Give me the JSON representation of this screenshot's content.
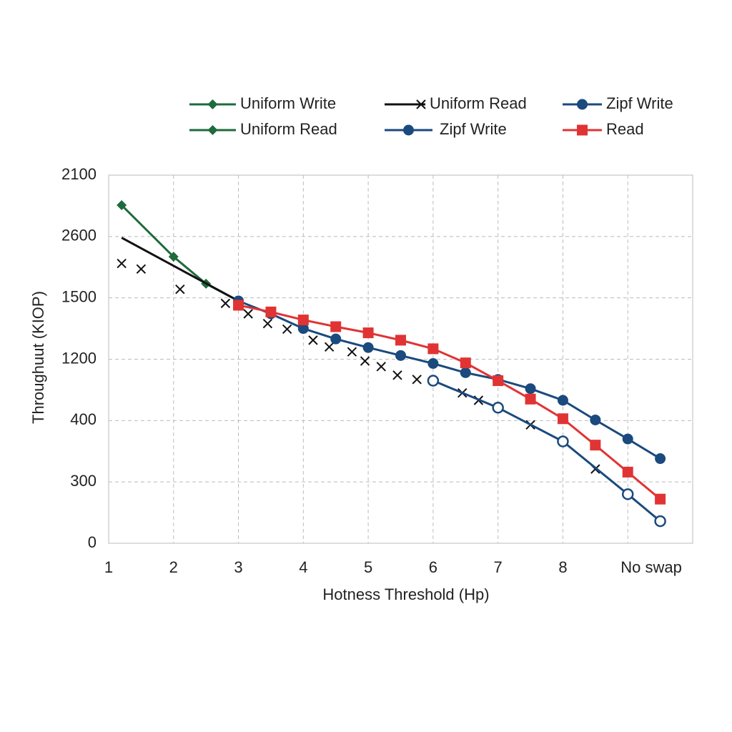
{
  "chart_data": {
    "type": "line",
    "x_label": "Hotness Threshold (Hp)",
    "y_label": "Throughuut (KIOP)",
    "xlim": [
      1,
      10
    ],
    "xticks": [
      1,
      2,
      3,
      4,
      5,
      6,
      7,
      8,
      {
        "value": 9,
        "label": "No swap"
      }
    ],
    "ylim": [
      0,
      6
    ],
    "yticks": [
      0,
      {
        "value": 1,
        "label": "300"
      },
      {
        "value": 2,
        "label": "400"
      },
      {
        "value": 3,
        "label": "1200"
      },
      {
        "value": 4,
        "label": "1500"
      },
      {
        "value": 5,
        "label": "2600"
      },
      {
        "value": 6,
        "label": "2100"
      }
    ],
    "grid": true,
    "series": [
      {
        "name": "Uniform Write",
        "color": "#1e6b3c",
        "marker": "diamond",
        "x": [
          1.2,
          2,
          2.5,
          3
        ],
        "values": [
          5.51,
          4.67,
          4.23,
          3.95
        ]
      },
      {
        "name": "Uniform Read",
        "color": "#111111",
        "marker": "x",
        "x": [
          1.2,
          3
        ],
        "values": [
          4.98,
          3.95
        ],
        "points": {
          "x": [
            1.2,
            1.5,
            2.1,
            2.8,
            3.15,
            3.45,
            3.75,
            4.15,
            4.4,
            4.75,
            4.95,
            5.2,
            5.45,
            5.75,
            6.45,
            6.7,
            7.5,
            8.5
          ],
          "values": [
            4.56,
            4.47,
            4.14,
            3.91,
            3.74,
            3.58,
            3.49,
            3.31,
            3.2,
            3.12,
            2.97,
            2.88,
            2.74,
            2.67,
            2.45,
            2.33,
            1.93,
            1.21
          ]
        }
      },
      {
        "name": "Zipf Write",
        "color": "#1a4a7e",
        "marker": "circle",
        "x": [
          3,
          3.5,
          4,
          4.5,
          5,
          5.5,
          6,
          6.5,
          7,
          7.5,
          8,
          8.5,
          9,
          9.5
        ],
        "values": [
          3.95,
          3.74,
          3.5,
          3.33,
          3.19,
          3.06,
          2.93,
          2.78,
          2.67,
          2.52,
          2.33,
          2.01,
          1.7,
          1.38
        ]
      },
      {
        "name": "Uniform Read",
        "color": "#1e6b3c",
        "marker": "diamond",
        "x": [],
        "values": []
      },
      {
        "name": "Zipf Write",
        "color": "#1a4a7e",
        "marker": "circle",
        "hollow": true,
        "x": [
          6,
          7,
          8,
          9,
          9.5
        ],
        "values": [
          2.65,
          2.21,
          1.66,
          0.8,
          0.36
        ]
      },
      {
        "name": "Read",
        "color": "#e03434",
        "marker": "square",
        "x": [
          3,
          3.5,
          4,
          4.5,
          5,
          5.5,
          6,
          6.5,
          7,
          7.5,
          8,
          8.5,
          9,
          9.5
        ],
        "values": [
          3.88,
          3.77,
          3.64,
          3.53,
          3.43,
          3.31,
          3.17,
          2.94,
          2.65,
          2.35,
          2.03,
          1.6,
          1.16,
          0.72
        ]
      }
    ]
  }
}
